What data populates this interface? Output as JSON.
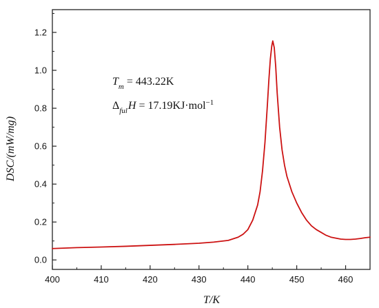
{
  "chart_data": {
    "type": "line",
    "title": "",
    "xlabel": "T/K",
    "ylabel": "DSC/(mW/mg)",
    "xlim": [
      400,
      465
    ],
    "ylim": [
      -0.05,
      1.32
    ],
    "xticks": [
      400,
      410,
      420,
      430,
      440,
      450,
      460
    ],
    "yticks": [
      0.0,
      0.2,
      0.4,
      0.6,
      0.8,
      1.0,
      1.2
    ],
    "xtick_labels": [
      "400",
      "410",
      "420",
      "430",
      "440",
      "450",
      "460"
    ],
    "ytick_labels": [
      "0.0",
      "0.2",
      "0.4",
      "0.6",
      "0.8",
      "1.0",
      "1.2"
    ],
    "grid": false,
    "legend": "none",
    "line_color": "#cc1111",
    "annotations": {
      "tm_symbol": "T",
      "tm_sub": "m",
      "tm_value": " = 443.22K",
      "dh_delta": "Δ",
      "dh_sub": "ful",
      "dh_symbol": "H",
      "dh_value": " = 17.19KJ·mol",
      "dh_sup": "−1"
    },
    "series": [
      {
        "x": [
          400,
          405,
          410,
          415,
          420,
          425,
          430,
          433,
          436,
          438,
          439,
          440,
          441,
          442,
          442.5,
          443,
          443.5,
          444,
          444.3,
          444.6,
          444.9,
          445.1,
          445.4,
          445.7,
          446,
          446.5,
          447,
          447.5,
          448,
          449,
          450,
          451,
          452,
          453,
          454,
          455,
          456,
          457,
          458,
          459,
          460,
          461,
          462,
          463,
          464,
          465
        ],
        "y": [
          0.06,
          0.065,
          0.068,
          0.072,
          0.077,
          0.082,
          0.088,
          0.094,
          0.103,
          0.12,
          0.135,
          0.16,
          0.21,
          0.29,
          0.36,
          0.47,
          0.62,
          0.82,
          0.95,
          1.06,
          1.13,
          1.155,
          1.12,
          1.02,
          0.88,
          0.7,
          0.58,
          0.5,
          0.44,
          0.36,
          0.3,
          0.25,
          0.21,
          0.18,
          0.16,
          0.145,
          0.13,
          0.12,
          0.115,
          0.11,
          0.108,
          0.108,
          0.11,
          0.113,
          0.117,
          0.12
        ]
      }
    ]
  }
}
